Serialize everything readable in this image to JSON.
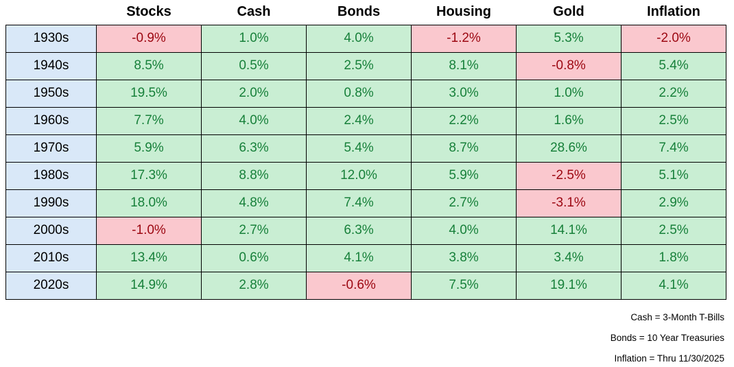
{
  "table": {
    "corner_label": "",
    "columns": [
      "Stocks",
      "Cash",
      "Bonds",
      "Housing",
      "Gold",
      "Inflation"
    ],
    "rows": [
      {
        "decade": "1930s",
        "values": [
          "-0.9%",
          "1.0%",
          "4.0%",
          "-1.2%",
          "5.3%",
          "-2.0%"
        ]
      },
      {
        "decade": "1940s",
        "values": [
          "8.5%",
          "0.5%",
          "2.5%",
          "8.1%",
          "-0.8%",
          "5.4%"
        ]
      },
      {
        "decade": "1950s",
        "values": [
          "19.5%",
          "2.0%",
          "0.8%",
          "3.0%",
          "1.0%",
          "2.2%"
        ]
      },
      {
        "decade": "1960s",
        "values": [
          "7.7%",
          "4.0%",
          "2.4%",
          "2.2%",
          "1.6%",
          "2.5%"
        ]
      },
      {
        "decade": "1970s",
        "values": [
          "5.9%",
          "6.3%",
          "5.4%",
          "8.7%",
          "28.6%",
          "7.4%"
        ]
      },
      {
        "decade": "1980s",
        "values": [
          "17.3%",
          "8.8%",
          "12.0%",
          "5.9%",
          "-2.5%",
          "5.1%"
        ]
      },
      {
        "decade": "1990s",
        "values": [
          "18.0%",
          "4.8%",
          "7.4%",
          "2.7%",
          "-3.1%",
          "2.9%"
        ]
      },
      {
        "decade": "2000s",
        "values": [
          "-1.0%",
          "2.7%",
          "6.3%",
          "4.0%",
          "14.1%",
          "2.5%"
        ]
      },
      {
        "decade": "2010s",
        "values": [
          "13.4%",
          "0.6%",
          "4.1%",
          "3.8%",
          "3.4%",
          "1.8%"
        ]
      },
      {
        "decade": "2020s",
        "values": [
          "14.9%",
          "2.8%",
          "-0.6%",
          "7.5%",
          "19.1%",
          "4.1%"
        ]
      }
    ]
  },
  "footnotes": [
    "Cash = 3-Month T-Bills",
    "Bonds = 10 Year Treasuries",
    "Inflation = Thru 11/30/2025"
  ],
  "colors": {
    "positive_bg": "#c9eed3",
    "positive_text": "#17803a",
    "negative_bg": "#fac8ce",
    "negative_text": "#9c0711",
    "decade_bg": "#d9e8f8",
    "header_text": "#000000",
    "border": "#000000"
  },
  "chart_data": {
    "type": "table",
    "categories": [
      "1930s",
      "1940s",
      "1950s",
      "1960s",
      "1970s",
      "1980s",
      "1990s",
      "2000s",
      "2010s",
      "2020s"
    ],
    "series": [
      {
        "name": "Stocks",
        "values": [
          -0.9,
          8.5,
          19.5,
          7.7,
          5.9,
          17.3,
          18.0,
          -1.0,
          13.4,
          14.9
        ]
      },
      {
        "name": "Cash",
        "values": [
          1.0,
          0.5,
          2.0,
          4.0,
          6.3,
          8.8,
          4.8,
          2.7,
          0.6,
          2.8
        ]
      },
      {
        "name": "Bonds",
        "values": [
          4.0,
          2.5,
          0.8,
          2.4,
          5.4,
          12.0,
          7.4,
          6.3,
          4.1,
          -0.6
        ]
      },
      {
        "name": "Housing",
        "values": [
          -1.2,
          8.1,
          3.0,
          2.2,
          8.7,
          5.9,
          2.7,
          4.0,
          3.8,
          7.5
        ]
      },
      {
        "name": "Gold",
        "values": [
          5.3,
          -0.8,
          1.0,
          1.6,
          28.6,
          -2.5,
          -3.1,
          14.1,
          3.4,
          19.1
        ]
      },
      {
        "name": "Inflation",
        "values": [
          -2.0,
          5.4,
          2.2,
          2.5,
          7.4,
          5.1,
          2.9,
          2.5,
          1.8,
          4.1
        ]
      }
    ],
    "unit": "%",
    "annotations": [
      "Cash = 3-Month T-Bills",
      "Bonds = 10 Year Treasuries",
      "Inflation = Thru 11/30/2025"
    ],
    "legend_position": "none",
    "grid": true,
    "conditional_formatting": "negative values highlighted pink with dark red text; positive values green with dark green text"
  }
}
